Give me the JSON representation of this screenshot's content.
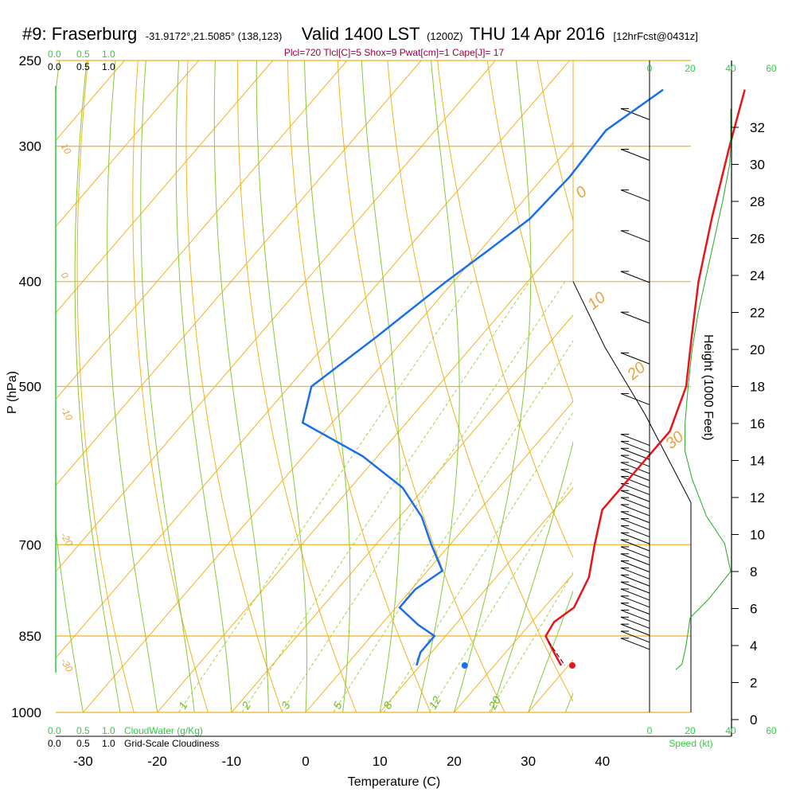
{
  "title": {
    "station": "#9: Fraserburg",
    "coords": "-31.9172°,21.5085° (138,123)",
    "valid": "Valid 1400 LST",
    "zulu": "(1200Z)",
    "date": "THU 14 Apr 2016",
    "forecast": "[12hrFcst@0431z]"
  },
  "indices": "Plcl=720 Tlcl[C]=5 Shox=9 Pwat[cm]=1 Cape[J]= 17",
  "colors": {
    "isotherm": "#f2b21e",
    "dry_adiabat": "#88c83a",
    "mixing_ratio": "#a6d24a",
    "temperature": "#e8141a",
    "dewpoint": "#1a6ee8",
    "cloud": "#22aa22",
    "parcel": "#800020",
    "title_index": "#990044"
  },
  "chart_data": {
    "type": "skew-t",
    "xlabel": "Temperature (C)",
    "ylabel": "P (hPa)",
    "y2label": "Height (1000 Feet)",
    "x_ticks": [
      "-30",
      "-20",
      "-10",
      "0",
      "10",
      "20",
      "30",
      "40"
    ],
    "x_values": [
      -30,
      -20,
      -10,
      0,
      10,
      20,
      30,
      40
    ],
    "pressure_ticks": [
      "250",
      "300",
      "400",
      "500",
      "700",
      "850",
      "1000"
    ],
    "pressure_values": [
      250,
      300,
      400,
      500,
      700,
      850,
      1000
    ],
    "height_ticks": [
      "32",
      "30",
      "28",
      "26",
      "24",
      "22",
      "20",
      "18",
      "16",
      "14",
      "12",
      "10",
      "8",
      "6",
      "4",
      "2",
      "0"
    ],
    "height_values": [
      32,
      30,
      28,
      26,
      24,
      22,
      20,
      18,
      16,
      14,
      12,
      10,
      8,
      6,
      4,
      2,
      0
    ],
    "cloud_scale_top_green": [
      "0.0",
      "0.5",
      "1.0"
    ],
    "cloud_scale_top_black": [
      "0.0",
      "0.5",
      "1.0"
    ],
    "cloud_scale_bottom_green": [
      "0.0",
      "0.5",
      "1.0"
    ],
    "cloud_scale_bottom_black": [
      "0.0",
      "0.5",
      "1.0"
    ],
    "cloudwater_label": "CloudWater (g/Kg)",
    "cloudiness_label": "Grid-Scale Cloudiness",
    "speed_ticks_top": [
      "0",
      "20",
      "40",
      "60"
    ],
    "speed_ticks_bottom": [
      "0",
      "20",
      "40",
      "60"
    ],
    "speed_values": [
      0,
      20,
      40,
      60
    ],
    "speed_label": "Speed (kt)",
    "isotherm_labels": [
      "10",
      "0",
      "-10",
      "-20",
      "-30"
    ],
    "isotherm_labels_right": [
      "0",
      "10",
      "20",
      "30"
    ],
    "mixing_ratio_labels": [
      "1",
      "2",
      "3",
      "5",
      "8",
      "12",
      "20"
    ],
    "temperature_profile": [
      {
        "p": 266,
        "t": -13.0
      },
      {
        "p": 300,
        "t": -8.5
      },
      {
        "p": 350,
        "t": -2.5
      },
      {
        "p": 400,
        "t": 3.0
      },
      {
        "p": 450,
        "t": 8.5
      },
      {
        "p": 500,
        "t": 13.5
      },
      {
        "p": 550,
        "t": 16.5
      },
      {
        "p": 600,
        "t": 16.5
      },
      {
        "p": 650,
        "t": 16.5
      },
      {
        "p": 700,
        "t": 19.5
      },
      {
        "p": 750,
        "t": 22.5
      },
      {
        "p": 800,
        "t": 24.0
      },
      {
        "p": 825,
        "t": 23.0
      },
      {
        "p": 850,
        "t": 23.5
      },
      {
        "p": 880,
        "t": 26.5
      },
      {
        "p": 905,
        "t": 29.0
      }
    ],
    "dewpoint_profile": [
      {
        "p": 266,
        "t": -24.0
      },
      {
        "p": 290,
        "t": -27.0
      },
      {
        "p": 320,
        "t": -26.5
      },
      {
        "p": 350,
        "t": -27.0
      },
      {
        "p": 375,
        "t": -29.0
      },
      {
        "p": 400,
        "t": -31.0
      },
      {
        "p": 450,
        "t": -34.0
      },
      {
        "p": 500,
        "t": -37.0
      },
      {
        "p": 540,
        "t": -34.0
      },
      {
        "p": 580,
        "t": -22.0
      },
      {
        "p": 620,
        "t": -13.0
      },
      {
        "p": 660,
        "t": -7.0
      },
      {
        "p": 700,
        "t": -2.5
      },
      {
        "p": 740,
        "t": 2.0
      },
      {
        "p": 770,
        "t": 0.5
      },
      {
        "p": 800,
        "t": 0.5
      },
      {
        "p": 830,
        "t": 5.0
      },
      {
        "p": 850,
        "t": 8.5
      },
      {
        "p": 880,
        "t": 8.5
      },
      {
        "p": 905,
        "t": 9.5
      }
    ],
    "surface_temperature": {
      "p": 905,
      "t": 30.5
    },
    "surface_dewpoint": {
      "p": 905,
      "t": 16.0
    },
    "parcel_path": [
      {
        "p": 860,
        "t": 24.5
      },
      {
        "p": 905,
        "t": 29.5
      }
    ],
    "cloudwater_profile": [
      {
        "h": 33,
        "v": 0
      },
      {
        "h": 31,
        "v": 0
      },
      {
        "h": 28,
        "v": 0
      },
      {
        "h": 25,
        "v": 0
      },
      {
        "h": 20,
        "v": 0
      },
      {
        "h": 15,
        "v": 0
      },
      {
        "h": 12,
        "v": 0
      },
      {
        "h": 10,
        "v": 0
      },
      {
        "h": 8,
        "v": 0
      },
      {
        "h": 6,
        "v": 0
      },
      {
        "h": 4,
        "v": 0
      },
      {
        "h": 3,
        "v": 0
      }
    ],
    "height_profile": [
      {
        "h": 33,
        "v": 40
      },
      {
        "h": 31,
        "v": 40
      },
      {
        "h": 30,
        "v": 39.5
      },
      {
        "h": 28,
        "v": 36
      },
      {
        "h": 26,
        "v": 32
      },
      {
        "h": 24,
        "v": 28
      },
      {
        "h": 22,
        "v": 24
      },
      {
        "h": 20,
        "v": 21
      },
      {
        "h": 18,
        "v": 19
      },
      {
        "h": 16,
        "v": 17.5
      },
      {
        "h": 14.5,
        "v": 17.5
      },
      {
        "h": 13,
        "v": 21
      },
      {
        "h": 11,
        "v": 28
      },
      {
        "h": 9.5,
        "v": 37
      },
      {
        "h": 8,
        "v": 40
      },
      {
        "h": 6.5,
        "v": 29
      },
      {
        "h": 5.5,
        "v": 20
      },
      {
        "h": 4,
        "v": 18
      },
      {
        "h": 3,
        "v": 16
      },
      {
        "h": 2.7,
        "v": 13
      }
    ]
  }
}
